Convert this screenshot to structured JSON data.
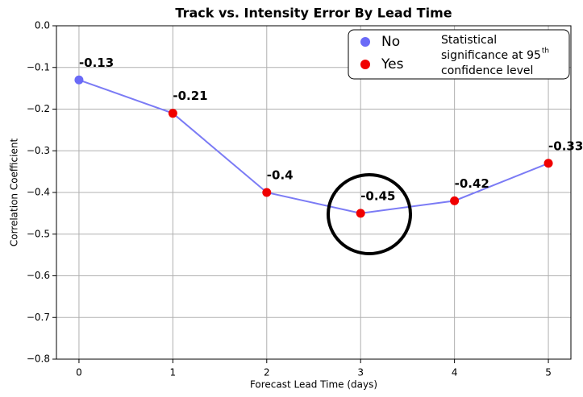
{
  "chart_data": {
    "type": "line",
    "title": "Track vs. Intensity Error By Lead Time",
    "xlabel": "Forecast Lead Time (days)",
    "ylabel": "Correlation Coefficient",
    "x": [
      0,
      1,
      2,
      3,
      4,
      5
    ],
    "xlim": [
      -0.24,
      5.24
    ],
    "xticks": [
      0,
      1,
      2,
      3,
      4,
      5
    ],
    "ylim": [
      -0.8,
      0
    ],
    "yticks": [
      {
        "value": 0,
        "label": "0.0"
      },
      {
        "value": -0.1,
        "label": "−0.1"
      },
      {
        "value": -0.2,
        "label": "−0.2"
      },
      {
        "value": -0.3,
        "label": "−0.3"
      },
      {
        "value": -0.4,
        "label": "−0.4"
      },
      {
        "value": -0.5,
        "label": "−0.5"
      },
      {
        "value": -0.6,
        "label": "−0.6"
      },
      {
        "value": -0.7,
        "label": "−0.7"
      },
      {
        "value": -0.8,
        "label": "−0.8"
      }
    ],
    "grid": true,
    "series": [
      {
        "color": "#7b7bf5",
        "values": [
          -0.13,
          -0.21,
          -0.4,
          -0.45,
          -0.42,
          -0.33
        ],
        "significance": [
          "No",
          "Yes",
          "Yes",
          "Yes",
          "Yes",
          "Yes"
        ]
      }
    ],
    "legend": [
      {
        "label": "No",
        "color": "#6a6af7"
      },
      {
        "label": "Yes",
        "color": "#f00000"
      }
    ],
    "legend_note": [
      "Statistical",
      "significance at 95",
      "confidence level"
    ],
    "legend_note_sup": "th",
    "legend_position": "upper right"
  }
}
